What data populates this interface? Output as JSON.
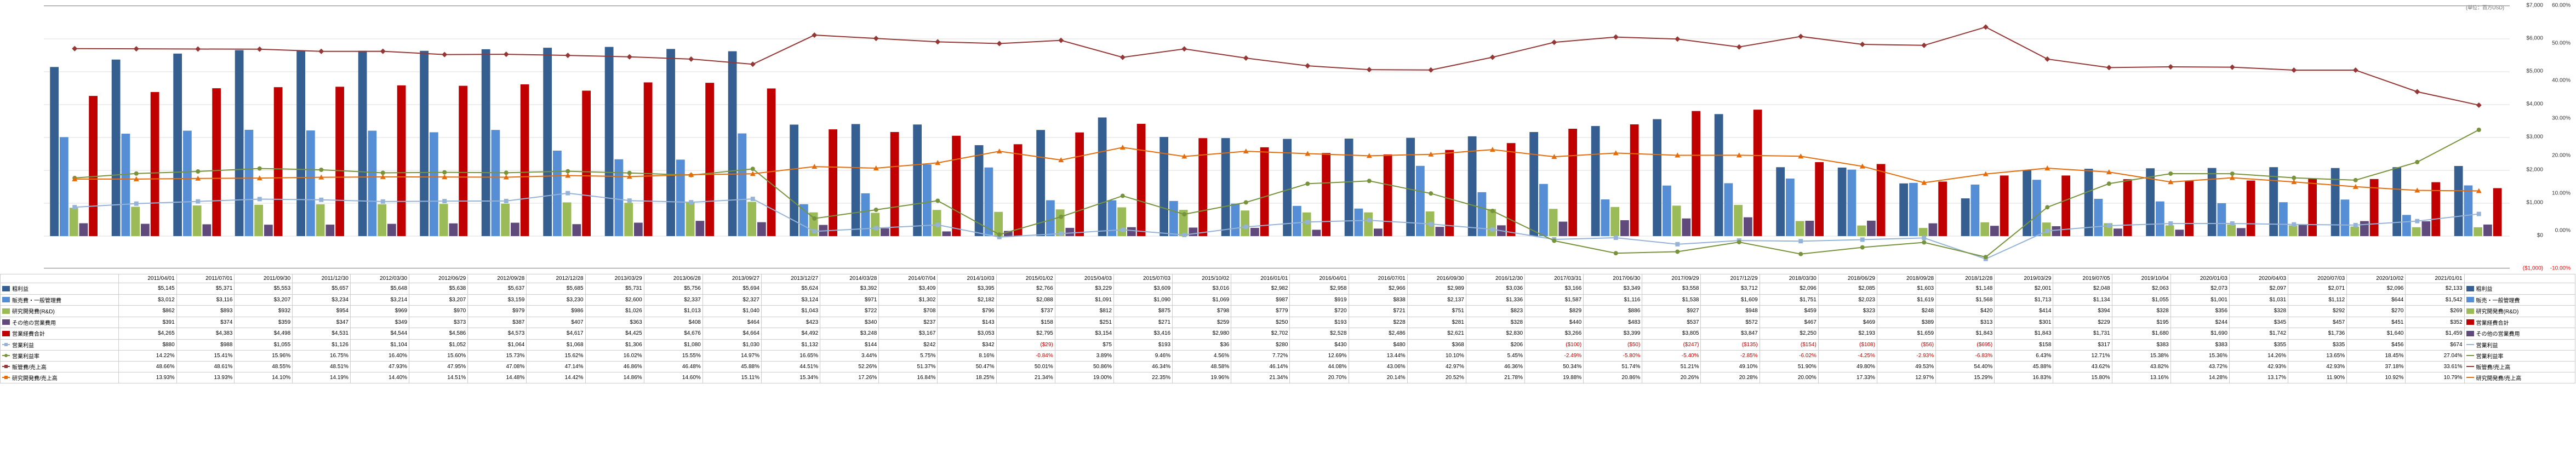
{
  "chart": {
    "unit_label": "(単位：百万USD)",
    "y_left": {
      "min": -1000,
      "max": 7000,
      "step": 1000,
      "neg_label": "($1,000)",
      "neg_color": "#ff0000"
    },
    "y_right": {
      "min": -10,
      "max": 60,
      "step": 10,
      "neg_label": "-10.00%",
      "neg_color": "#ff0000"
    },
    "periods": [
      "2011/04/01",
      "2011/07/01",
      "2011/09/30",
      "2011/12/30",
      "2012/03/30",
      "2012/06/29",
      "2012/09/28",
      "2012/12/28",
      "2013/03/29",
      "2013/06/28",
      "2013/09/27",
      "2013/12/27",
      "2014/03/28",
      "2014/07/04",
      "2014/10/03",
      "2015/01/02",
      "2015/04/03",
      "2015/07/03",
      "2015/10/02",
      "2016/01/01",
      "2016/04/01",
      "2016/07/01",
      "2016/09/30",
      "2016/12/30",
      "2017/03/31",
      "2017/06/30",
      "2017/09/29",
      "2017/12/29",
      "2018/03/30",
      "2018/06/29",
      "2018/09/28",
      "2018/12/28",
      "2019/03/29",
      "2019/07/05",
      "2019/10/04",
      "2020/01/03",
      "2020/04/03",
      "2020/07/03",
      "2020/10/02",
      "2021/01/01"
    ],
    "bars": [
      {
        "label": "粗利益",
        "color": "#365f91",
        "values": [
          5145,
          5371,
          5553,
          5657,
          5648,
          5638,
          5637,
          5685,
          5731,
          5756,
          5694,
          5624,
          3392,
          3409,
          3395,
          2766,
          3229,
          3609,
          3016,
          2982,
          2958,
          2966,
          2989,
          3036,
          3166,
          3349,
          3558,
          3712,
          2096,
          2085,
          1603,
          1148,
          2001,
          2048,
          2063,
          2073,
          2097,
          2071,
          2096,
          2133
        ]
      },
      {
        "label": "販売費・一般管理費",
        "color": "#558ed5",
        "values": [
          3012,
          3116,
          3207,
          3234,
          3214,
          3207,
          3159,
          3230,
          2600,
          2337,
          2327,
          3124,
          971,
          1302,
          2182,
          2088,
          1091,
          1090,
          1069,
          987,
          919,
          838,
          2137,
          1336,
          1587,
          1116,
          1538,
          1609,
          1751,
          2023,
          1619,
          1568,
          1713,
          1134,
          1055,
          1001,
          1031,
          1112,
          644,
          1542
        ]
      },
      {
        "label": "研究開発費(R&D)",
        "color": "#9bbb59",
        "values": [
          862,
          893,
          932,
          954,
          969,
          970,
          979,
          986,
          1026,
          1013,
          1040,
          1043,
          722,
          708,
          796,
          737,
          812,
          875,
          798,
          779,
          720,
          721,
          751,
          823,
          829,
          886,
          927,
          948,
          459,
          323,
          248,
          420,
          414,
          394,
          328,
          356,
          328,
          292,
          270,
          269
        ]
      },
      {
        "label": "その他の営業費用",
        "color": "#604a7b",
        "values": [
          391,
          374,
          359,
          347,
          349,
          373,
          387,
          407,
          363,
          408,
          464,
          423,
          340,
          237,
          143,
          158,
          251,
          271,
          259,
          250,
          193,
          228,
          281,
          328,
          440,
          483,
          537,
          572,
          467,
          469,
          389,
          313,
          301,
          229,
          195,
          244,
          345,
          457,
          451,
          352
        ]
      }
    ],
    "stacked_bar": {
      "label": "営業経費合計",
      "color": "#c00000",
      "values": [
        4265,
        4383,
        4498,
        4531,
        4544,
        4586,
        4573,
        4617,
        4425,
        4676,
        4664,
        4492,
        3248,
        3167,
        3053,
        2795,
        3154,
        3416,
        2980,
        2702,
        2528,
        2486,
        2621,
        2830,
        3266,
        3399,
        3805,
        3847,
        2250,
        2193,
        1659,
        1843,
        1843,
        1731,
        1680,
        1690,
        1742,
        1736,
        1640,
        1459
      ]
    },
    "lines": [
      {
        "label": "営業利益",
        "color": "#95b3d7",
        "marker": "square",
        "values": [
          880,
          988,
          1055,
          1126,
          1104,
          1052,
          1064,
          1068,
          1306,
          1080,
          1030,
          1132,
          144,
          242,
          342,
          -29,
          75,
          193,
          36,
          280,
          430,
          480,
          368,
          206,
          -100,
          -50,
          -247,
          -135,
          -154,
          -108,
          -56,
          -695,
          158,
          317,
          383,
          383,
          355,
          335,
          456,
          674
        ]
      },
      {
        "label": "営業利益率",
        "color": "#77933c",
        "marker": "circle",
        "axis": "right",
        "values": [
          14.22,
          15.41,
          15.96,
          16.75,
          16.4,
          15.6,
          15.73,
          15.62,
          16.02,
          15.55,
          14.97,
          16.65,
          3.44,
          5.75,
          8.16,
          -0.84,
          3.89,
          9.46,
          4.56,
          7.72,
          12.69,
          13.44,
          10.1,
          5.45,
          -2.49,
          -5.8,
          -5.4,
          -2.85,
          -6.02,
          -4.25,
          -2.93,
          -6.83,
          6.43,
          12.71,
          15.38,
          15.36,
          14.26,
          13.65,
          18.45,
          27.04
        ]
      },
      {
        "label": "販管費/売上高",
        "color": "#953735",
        "marker": "diamond",
        "axis": "right",
        "values": [
          48.66,
          48.61,
          48.55,
          48.51,
          47.93,
          47.95,
          47.08,
          47.14,
          46.86,
          46.48,
          45.88,
          44.51,
          52.26,
          51.37,
          50.47,
          50.01,
          50.86,
          46.34,
          48.58,
          46.14,
          44.08,
          43.06,
          42.97,
          46.36,
          50.34,
          51.74,
          51.21,
          49.1,
          51.9,
          49.8,
          49.53,
          54.4,
          45.88,
          43.62,
          43.82,
          43.72,
          42.93,
          42.93,
          37.18,
          33.61
        ]
      },
      {
        "label": "研究開発費/売上高",
        "color": "#e46c0a",
        "marker": "triangle",
        "axis": "right",
        "values": [
          13.93,
          13.93,
          14.1,
          14.19,
          14.4,
          14.51,
          14.48,
          14.42,
          14.86,
          14.6,
          15.11,
          15.34,
          17.26,
          16.84,
          18.25,
          21.34,
          19.0,
          22.35,
          19.96,
          21.34,
          20.7,
          20.14,
          20.52,
          21.78,
          19.88,
          20.86,
          20.26,
          20.28,
          20.0,
          17.33,
          12.97,
          15.29,
          16.83,
          15.8,
          13.16,
          14.28,
          13.17,
          11.9,
          10.92,
          10.79
        ]
      }
    ],
    "legend_right": [
      {
        "label": "粗利益",
        "type": "bar",
        "color": "#365f91"
      },
      {
        "label": "販売・一般管理費",
        "type": "bar",
        "color": "#558ed5"
      },
      {
        "label": "研究開発費(R&D)",
        "type": "bar",
        "color": "#9bbb59"
      },
      {
        "label": "営業経費合計",
        "type": "bar",
        "color": "#c00000"
      },
      {
        "label": "その他の営業費用",
        "type": "bar",
        "color": "#604a7b"
      },
      {
        "label": "営業利益",
        "type": "line",
        "color": "#95b3d7"
      },
      {
        "label": "営業利益率",
        "type": "line",
        "color": "#77933c"
      },
      {
        "label": "販管費/売上高",
        "type": "line",
        "color": "#953735"
      },
      {
        "label": "研究開発費/売上高",
        "type": "line",
        "color": "#e46c0a"
      }
    ]
  },
  "table": {
    "row_labels": [
      "粗利益",
      "販売費・一般管理費",
      "研究開発費(R&D)",
      "その他の営業費用",
      "営業経費合計",
      "営業利益",
      "営業利益率",
      "販管費/売上高",
      "研究開発費/売上高"
    ]
  }
}
